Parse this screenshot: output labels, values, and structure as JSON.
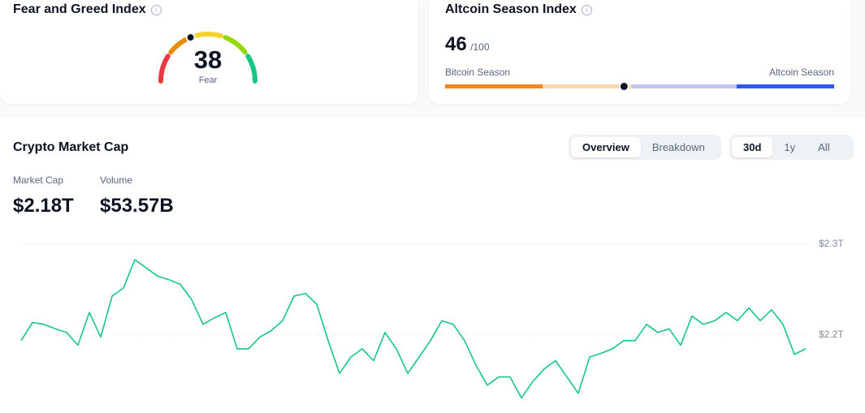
{
  "fear_greed": {
    "title": "Fear and Greed Index",
    "value": 38,
    "label": "Fear",
    "range": [
      0,
      100
    ]
  },
  "altcoin_season": {
    "title": "Altcoin Season Index",
    "value": 46,
    "scale_label": "/100",
    "range": [
      0,
      100
    ],
    "left_label": "Bitcoin Season",
    "right_label": "Altcoin Season"
  },
  "market": {
    "title": "Crypto Market Cap",
    "tabs": [
      "Overview",
      "Breakdown"
    ],
    "ranges": [
      "30d",
      "1y",
      "All"
    ],
    "stats": [
      {
        "label": "Market Cap",
        "value": "$2.18T"
      },
      {
        "label": "Volume",
        "value": "$53.57B"
      }
    ],
    "chart_data": {
      "type": "line",
      "color": "#16c784",
      "values": [
        2.193,
        2.213,
        2.211,
        2.206,
        2.202,
        2.188,
        2.224,
        2.197,
        2.242,
        2.251,
        2.282,
        2.273,
        2.264,
        2.26,
        2.255,
        2.238,
        2.211,
        2.218,
        2.224,
        2.184,
        2.184,
        2.197,
        2.204,
        2.215,
        2.242,
        2.245,
        2.233,
        2.193,
        2.157,
        2.175,
        2.184,
        2.171,
        2.202,
        2.184,
        2.157,
        2.175,
        2.193,
        2.215,
        2.211,
        2.193,
        2.166,
        2.144,
        2.153,
        2.153,
        2.13,
        2.148,
        2.162,
        2.171,
        2.153,
        2.135,
        2.175,
        2.179,
        2.184,
        2.193,
        2.193,
        2.211,
        2.202,
        2.206,
        2.188,
        2.22,
        2.211,
        2.215,
        2.224,
        2.215,
        2.229,
        2.215,
        2.227,
        2.211,
        2.178,
        2.184
      ],
      "ylim": [
        2.12,
        2.31
      ],
      "yticks": [
        {
          "value": 2.3,
          "label": "$2.3T"
        },
        {
          "value": 2.2,
          "label": "$2.2T"
        }
      ],
      "grid": true
    }
  }
}
